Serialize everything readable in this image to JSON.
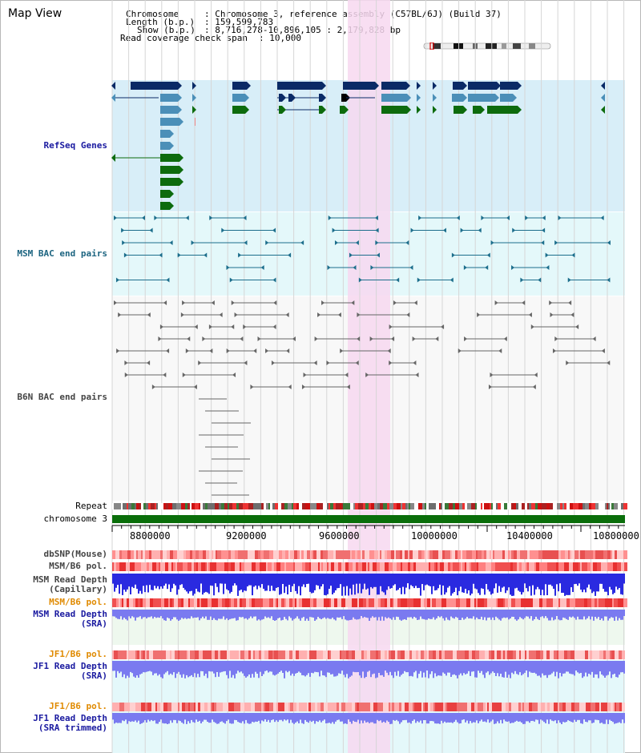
{
  "map_title": "Map View",
  "info": {
    "chromosome_key": "Chromosome",
    "chromosome_value": ": Chromosome 3, reference assembly (C57BL/6J) (Build 37)",
    "length_key": "Length (b.p.)",
    "length_value": ": 159,599,783",
    "show_key": "Show (b.p.)",
    "show_value": ": 8,716,278-10,896,105 : 2,179,828 bp",
    "coverage_key": "Read coverage check span",
    "coverage_value": ": 10,000"
  },
  "tracks": {
    "refseq": "RefSeq Genes",
    "msm_bac": "MSM BAC end pairs",
    "b6n_bac": "B6N BAC end pairs",
    "repeat": "Repeat",
    "chromosome": "chromosome 3",
    "dbsnp": "dbSNP(Mouse)",
    "msm_pol_1": "MSM/B6 pol.",
    "msm_depth_cap_1": "MSM Read Depth",
    "msm_depth_cap_2": "(Capillary)",
    "msm_pol_2": "MSM/B6 pol.",
    "msm_depth_sra_1": "MSM Read Depth",
    "msm_depth_sra_2": "(SRA)",
    "jf1_pol_1": "JF1/B6 pol.",
    "jf1_depth_1": "JF1 Read Depth",
    "jf1_depth_2": "(SRA)",
    "jf1_pol_2": "JF1/B6 pol.",
    "jf1_trim_1": "JF1 Read Depth",
    "jf1_trim_2": "(SRA trimmed)"
  },
  "axis": {
    "ticks": [
      "8800000",
      "9200000",
      "9600000",
      "10000000",
      "10400000",
      "10800000"
    ]
  },
  "colors": {
    "refseq_bg": "#d8eef8",
    "msm_bac_bg": "#e4f8fa",
    "b6n_bac_bg": "#f8f8f8",
    "highlight": "#f7d8f0",
    "gene_dark": "#0a2a66",
    "gene_mid": "#4b8fb8",
    "gene_green": "#0d6b0d",
    "chrom_bar": "#0a6e0a",
    "depth_blue": "#2a2ae0",
    "depth_light": "#7a7af0"
  }
}
